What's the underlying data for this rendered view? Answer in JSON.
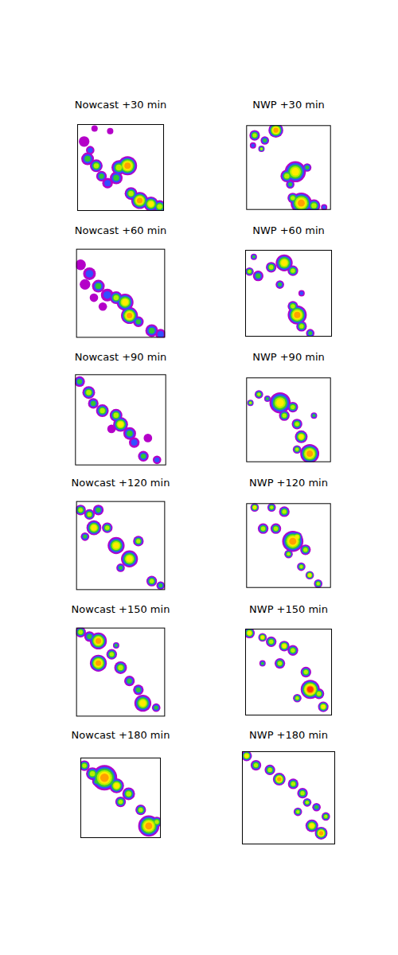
{
  "chart_data": [
    {
      "type": "bubble",
      "title": "Nowcast +30 min",
      "xlim": [
        0,
        100
      ],
      "ylim": [
        0,
        100
      ],
      "grid": false,
      "tick_labels": false,
      "levels": [
        0.1,
        0.5,
        1,
        2,
        5,
        10,
        20
      ],
      "x": [
        8,
        15,
        12,
        22,
        28,
        35,
        48,
        58,
        45,
        62,
        72,
        85,
        95,
        20,
        38
      ],
      "y": [
        80,
        70,
        60,
        52,
        40,
        32,
        50,
        52,
        38,
        20,
        12,
        8,
        5,
        95,
        92
      ],
      "size": [
        5,
        4,
        6,
        6,
        5,
        5,
        7,
        9,
        6,
        6,
        8,
        7,
        6,
        3,
        3
      ],
      "values": [
        0.3,
        0.7,
        1.5,
        3,
        1.5,
        0.7,
        3,
        15,
        1.5,
        3,
        15,
        7,
        3,
        0.3,
        0.3
      ]
    },
    {
      "type": "bubble",
      "title": "NWP +30 min",
      "xlim": [
        0,
        100
      ],
      "ylim": [
        0,
        100
      ],
      "grid": false,
      "tick_labels": false,
      "levels": [
        0.1,
        0.5,
        1,
        2,
        5,
        10,
        20
      ],
      "x": [
        10,
        22,
        35,
        18,
        8,
        58,
        48,
        72,
        52,
        65,
        80,
        55,
        92
      ],
      "y": [
        88,
        82,
        94,
        72,
        76,
        45,
        40,
        50,
        30,
        8,
        5,
        14,
        3
      ],
      "size": [
        5,
        4,
        7,
        3,
        3,
        10,
        6,
        4,
        4,
        10,
        6,
        5,
        3
      ],
      "values": [
        3,
        1.5,
        15,
        3,
        0.7,
        7,
        3,
        1.5,
        1.5,
        15,
        3,
        3,
        0.7
      ]
    },
    {
      "type": "bubble",
      "title": "Nowcast +60 min",
      "xlim": [
        0,
        100
      ],
      "ylim": [
        0,
        100
      ],
      "grid": false,
      "tick_labels": false,
      "levels": [
        0.1,
        0.5,
        1,
        2,
        5,
        10,
        20
      ],
      "x": [
        5,
        15,
        10,
        25,
        35,
        20,
        45,
        55,
        60,
        70,
        85,
        95,
        30
      ],
      "y": [
        82,
        72,
        60,
        58,
        48,
        45,
        45,
        40,
        25,
        18,
        8,
        4,
        35
      ],
      "size": [
        5,
        6,
        5,
        6,
        6,
        4,
        6,
        8,
        8,
        5,
        6,
        5,
        4
      ],
      "values": [
        0.3,
        0.7,
        0.3,
        1.5,
        0.7,
        0.3,
        3,
        7,
        15,
        1.5,
        1.5,
        0.7,
        0.3
      ]
    },
    {
      "type": "bubble",
      "title": "NWP +60 min",
      "xlim": [
        0,
        100
      ],
      "ylim": [
        0,
        100
      ],
      "grid": false,
      "tick_labels": false,
      "levels": [
        0.1,
        0.5,
        1,
        2,
        5,
        10,
        20
      ],
      "x": [
        5,
        15,
        30,
        45,
        55,
        40,
        65,
        55,
        60,
        65,
        75,
        10
      ],
      "y": [
        75,
        70,
        80,
        85,
        76,
        60,
        50,
        35,
        25,
        12,
        4,
        92
      ],
      "size": [
        4,
        5,
        5,
        8,
        5,
        4,
        3,
        5,
        9,
        5,
        4,
        3
      ],
      "values": [
        3,
        1.5,
        3,
        7,
        3,
        1.5,
        0.7,
        3,
        15,
        3,
        1.5,
        1.5
      ]
    },
    {
      "type": "bubble",
      "title": "Nowcast +90 min",
      "xlim": [
        0,
        100
      ],
      "ylim": [
        0,
        100
      ],
      "grid": false,
      "tick_labels": false,
      "levels": [
        0.1,
        0.5,
        1,
        2,
        5,
        10,
        20
      ],
      "x": [
        5,
        15,
        20,
        30,
        45,
        50,
        60,
        65,
        80,
        75,
        90,
        40
      ],
      "y": [
        92,
        80,
        68,
        60,
        55,
        45,
        35,
        25,
        30,
        10,
        6,
        40
      ],
      "size": [
        5,
        6,
        5,
        6,
        6,
        7,
        6,
        5,
        4,
        5,
        4,
        4
      ],
      "values": [
        1.5,
        3,
        1.5,
        3,
        3,
        7,
        1.5,
        0.7,
        0.3,
        1.5,
        0.7,
        0.3
      ]
    },
    {
      "type": "bubble",
      "title": "NWP +90 min",
      "xlim": [
        0,
        100
      ],
      "ylim": [
        0,
        100
      ],
      "grid": false,
      "tick_labels": false,
      "levels": [
        0.1,
        0.5,
        1,
        2,
        5,
        10,
        20
      ],
      "x": [
        5,
        15,
        40,
        55,
        45,
        60,
        65,
        75,
        60,
        25,
        80
      ],
      "y": [
        70,
        80,
        70,
        65,
        55,
        45,
        30,
        10,
        15,
        75,
        55
      ],
      "size": [
        3,
        4,
        10,
        5,
        5,
        5,
        6,
        9,
        4,
        3,
        3
      ],
      "values": [
        3,
        3,
        7,
        3,
        3,
        3,
        7,
        15,
        3,
        1.5,
        1.5
      ]
    },
    {
      "type": "bubble",
      "title": "Nowcast +120 min",
      "xlim": [
        0,
        100
      ],
      "ylim": [
        0,
        100
      ],
      "grid": false,
      "tick_labels": false,
      "levels": [
        0.1,
        0.5,
        1,
        2,
        5,
        10,
        20
      ],
      "x": [
        5,
        15,
        25,
        20,
        35,
        45,
        60,
        70,
        85,
        95,
        50,
        10
      ],
      "y": [
        90,
        85,
        90,
        70,
        70,
        50,
        35,
        55,
        10,
        5,
        25,
        60
      ],
      "size": [
        5,
        5,
        5,
        7,
        5,
        8,
        8,
        5,
        5,
        4,
        4,
        4
      ],
      "values": [
        3,
        3,
        1.5,
        7,
        3,
        7,
        7,
        3,
        3,
        1.5,
        1.5,
        1.5
      ]
    },
    {
      "type": "bubble",
      "title": "NWP +120 min",
      "xlim": [
        0,
        100
      ],
      "ylim": [
        0,
        100
      ],
      "grid": false,
      "tick_labels": false,
      "levels": [
        0.1,
        0.5,
        1,
        2,
        5,
        10,
        20
      ],
      "x": [
        10,
        30,
        45,
        20,
        35,
        55,
        70,
        50,
        65,
        75,
        85,
        60
      ],
      "y": [
        95,
        95,
        90,
        70,
        70,
        55,
        45,
        40,
        25,
        15,
        5,
        60
      ],
      "size": [
        4,
        4,
        5,
        5,
        5,
        10,
        5,
        4,
        4,
        4,
        4,
        5
      ],
      "values": [
        7,
        3,
        3,
        3,
        3,
        15,
        3,
        3,
        3,
        7,
        3,
        7
      ]
    },
    {
      "type": "bubble",
      "title": "Nowcast +150 min",
      "xlim": [
        0,
        100
      ],
      "ylim": [
        0,
        100
      ],
      "grid": false,
      "tick_labels": false,
      "levels": [
        0.1,
        0.5,
        1,
        2,
        5,
        10,
        20
      ],
      "x": [
        5,
        15,
        25,
        40,
        25,
        50,
        60,
        70,
        75,
        90,
        45
      ],
      "y": [
        95,
        90,
        85,
        70,
        60,
        55,
        40,
        30,
        15,
        10,
        80
      ],
      "size": [
        5,
        5,
        8,
        5,
        8,
        6,
        5,
        5,
        8,
        4,
        3
      ],
      "values": [
        3,
        1.5,
        15,
        3,
        15,
        3,
        1.5,
        1.5,
        7,
        1.5,
        1.5
      ]
    },
    {
      "type": "bubble",
      "title": "NWP +150 min",
      "xlim": [
        0,
        100
      ],
      "ylim": [
        0,
        100
      ],
      "grid": false,
      "tick_labels": false,
      "levels": [
        0.1,
        0.5,
        1,
        2,
        5,
        10,
        20
      ],
      "x": [
        5,
        20,
        30,
        45,
        55,
        40,
        20,
        70,
        75,
        85,
        90,
        60
      ],
      "y": [
        95,
        90,
        85,
        80,
        75,
        60,
        60,
        50,
        30,
        25,
        10,
        20
      ],
      "size": [
        5,
        4,
        5,
        5,
        5,
        5,
        3,
        5,
        9,
        5,
        5,
        4
      ],
      "values": [
        7,
        7,
        3,
        7,
        3,
        3,
        1.5,
        3,
        25,
        3,
        7,
        3
      ]
    },
    {
      "type": "bubble",
      "title": "Nowcast +180 min",
      "xlim": [
        0,
        100
      ],
      "ylim": [
        0,
        100
      ],
      "grid": false,
      "tick_labels": false,
      "levels": [
        0.1,
        0.5,
        1,
        2,
        5,
        10,
        20
      ],
      "x": [
        5,
        15,
        30,
        45,
        60,
        50,
        75,
        85,
        95,
        20
      ],
      "y": [
        90,
        80,
        75,
        65,
        55,
        45,
        35,
        15,
        20,
        70
      ],
      "size": [
        5,
        6,
        12,
        7,
        6,
        5,
        5,
        10,
        5,
        4
      ],
      "values": [
        3,
        3,
        15,
        7,
        3,
        3,
        3,
        15,
        3,
        1.5
      ]
    },
    {
      "type": "bubble",
      "title": "NWP +180 min",
      "xlim": [
        0,
        100
      ],
      "ylim": [
        0,
        100
      ],
      "grid": false,
      "tick_labels": false,
      "levels": [
        0.1,
        0.5,
        1,
        2,
        5,
        10,
        20
      ],
      "x": [
        5,
        15,
        30,
        40,
        55,
        65,
        70,
        60,
        80,
        75,
        85,
        90
      ],
      "y": [
        95,
        85,
        80,
        70,
        65,
        55,
        45,
        35,
        40,
        20,
        12,
        30
      ],
      "size": [
        5,
        5,
        5,
        6,
        5,
        5,
        4,
        4,
        4,
        6,
        6,
        4
      ],
      "values": [
        7,
        3,
        3,
        15,
        3,
        3,
        3,
        3,
        1.5,
        7,
        15,
        3
      ]
    }
  ]
}
